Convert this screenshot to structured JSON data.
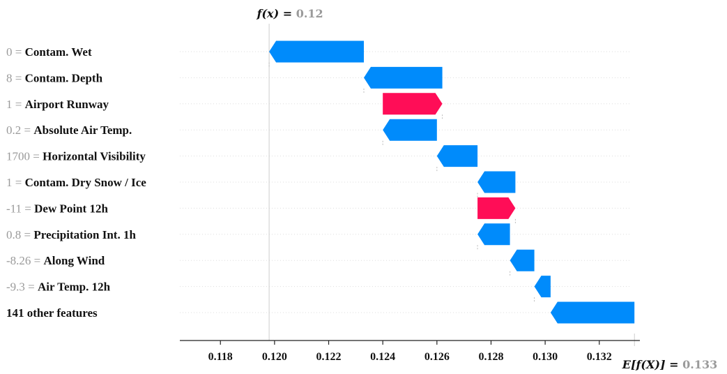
{
  "chart_data": {
    "type": "waterfall",
    "fx_label": "f(x) = ",
    "fx_value": "0.12",
    "ex_label": "E[f(X)] = ",
    "ex_value": "0.133",
    "fx": 0.1198,
    "ex": 0.1333,
    "xlim": [
      0.1165,
      0.1335
    ],
    "xticks": [
      "0.118",
      "0.120",
      "0.122",
      "0.124",
      "0.126",
      "0.128",
      "0.130",
      "0.132"
    ],
    "colors": {
      "positive": "#ff0d57",
      "negative": "#008bfb"
    },
    "features": [
      {
        "value": "0",
        "name": "Contam. Wet",
        "start": 0.1233,
        "end": 0.1198
      },
      {
        "value": "8",
        "name": "Contam. Depth",
        "start": 0.1262,
        "end": 0.1233
      },
      {
        "value": "1",
        "name": "Airport Runway",
        "start": 0.124,
        "end": 0.1262
      },
      {
        "value": "0.2",
        "name": "Absolute Air Temp.",
        "start": 0.126,
        "end": 0.124
      },
      {
        "value": "1700",
        "name": "Horizontal Visibility",
        "start": 0.1275,
        "end": 0.126
      },
      {
        "value": "1",
        "name": "Contam. Dry Snow / Ice",
        "start": 0.1289,
        "end": 0.1275
      },
      {
        "value": "-11",
        "name": "Dew Point 12h",
        "start": 0.1275,
        "end": 0.1289
      },
      {
        "value": "0.8",
        "name": "Precipitation Int. 1h",
        "start": 0.1287,
        "end": 0.1275
      },
      {
        "value": "-8.26",
        "name": "Along Wind",
        "start": 0.1296,
        "end": 0.1287
      },
      {
        "value": "-9.3",
        "name": "Air Temp. 12h",
        "start": 0.1302,
        "end": 0.1296
      },
      {
        "value": "",
        "name": "141 other features",
        "start": 0.1333,
        "end": 0.1302
      }
    ]
  }
}
